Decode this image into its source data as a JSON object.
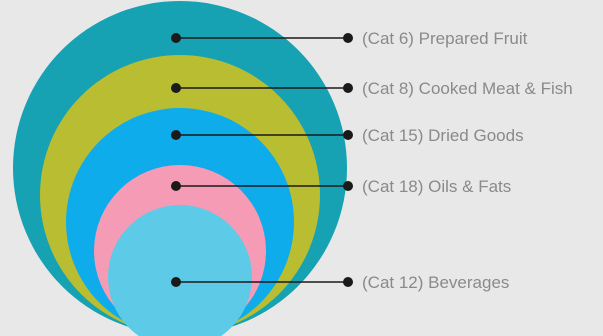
{
  "colors": {
    "background": "#e8e8e8",
    "connector": "#1a1a1a",
    "label_text": "#8a8a8a"
  },
  "levels": [
    {
      "label": "(Cat 6) Prepared Fruit",
      "color": "#16a2b2"
    },
    {
      "label": "(Cat 8) Cooked Meat & Fish",
      "color": "#b8bd32"
    },
    {
      "label": "(Cat 15) Dried Goods",
      "color": "#0eacea"
    },
    {
      "label": "(Cat 18) Oils & Fats",
      "color": "#f59bb6"
    },
    {
      "label": "(Cat 12) Beverages",
      "color": "#5dcbe8"
    }
  ]
}
